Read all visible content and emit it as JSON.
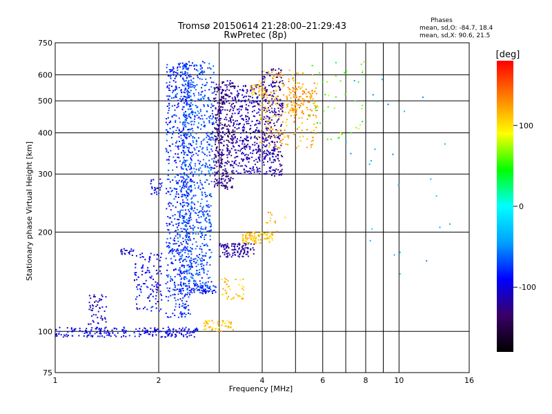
{
  "chart_data": {
    "type": "scatter",
    "title": "Tromsø 20150614 21:28:00–21:29:43",
    "subtitle": "RwPretec (8p)",
    "xlabel": "Frequency [MHz]",
    "ylabel": "Stationary phase Virtual Height [km]",
    "x_scale": "log",
    "y_scale": "log",
    "xlim": [
      1,
      16
    ],
    "ylim": [
      75,
      750
    ],
    "x_ticks": [
      1,
      2,
      4,
      6,
      8,
      10,
      16
    ],
    "y_ticks": [
      75,
      100,
      200,
      300,
      400,
      500,
      600,
      750
    ],
    "x_minor_gridlines": [
      3,
      5,
      7,
      9
    ],
    "grid": true,
    "phases_box": {
      "heading": "Phases",
      "line_o": "mean, sd,O: -84.7, 18.4",
      "line_x": "mean, sd,X:  90.6, 21.5"
    },
    "colorbar": {
      "label": "[deg]",
      "range": [
        -180,
        180
      ],
      "ticks": [
        100,
        0,
        -100
      ],
      "colormap": "rainbow",
      "colors": [
        "#000000",
        "#3a0066",
        "#0000ff",
        "#00a0ff",
        "#00ffff",
        "#00ff00",
        "#ffff00",
        "#ff8000",
        "#ff0000"
      ]
    },
    "clusters": [
      {
        "x": [
          1.0,
          2.6
        ],
        "y": [
          96,
          103
        ],
        "phase": -95,
        "n": 230,
        "mode": "line"
      },
      {
        "x": [
          1.25,
          1.42
        ],
        "y": [
          105,
          132
        ],
        "phase": -105,
        "n": 50
      },
      {
        "x": [
          1.55,
          1.7
        ],
        "y": [
          170,
          178
        ],
        "phase": -100,
        "n": 20
      },
      {
        "x": [
          1.7,
          2.05
        ],
        "y": [
          115,
          175
        ],
        "phase": -95,
        "n": 120
      },
      {
        "x": [
          1.88,
          2.05
        ],
        "y": [
          260,
          290
        ],
        "phase": -95,
        "n": 25
      },
      {
        "x": [
          2.1,
          2.5
        ],
        "y": [
          110,
          660
        ],
        "phase": -80,
        "n": 650
      },
      {
        "x": [
          2.3,
          2.85
        ],
        "y": [
          130,
          300
        ],
        "phase": -70,
        "n": 420
      },
      {
        "x": [
          2.35,
          2.9
        ],
        "y": [
          300,
          660
        ],
        "phase": -70,
        "n": 380
      },
      {
        "x": [
          2.5,
          2.95
        ],
        "y": [
          130,
          138
        ],
        "phase": -88,
        "n": 40
      },
      {
        "x": [
          2.7,
          3.3
        ],
        "y": [
          100,
          108
        ],
        "phase": 110,
        "n": 50
      },
      {
        "x": [
          3.05,
          3.55
        ],
        "y": [
          125,
          145
        ],
        "phase": 112,
        "n": 40
      },
      {
        "x": [
          2.9,
          3.3
        ],
        "y": [
          270,
          580
        ],
        "phase": -125,
        "n": 380
      },
      {
        "x": [
          3.0,
          3.8
        ],
        "y": [
          168,
          185
        ],
        "phase": -120,
        "n": 110
      },
      {
        "x": [
          3.3,
          3.95
        ],
        "y": [
          300,
          560
        ],
        "phase": -112,
        "n": 320
      },
      {
        "x": [
          3.5,
          4.3
        ],
        "y": [
          185,
          200
        ],
        "phase": 112,
        "n": 90
      },
      {
        "x": [
          3.7,
          4.1
        ],
        "y": [
          520,
          560
        ],
        "phase": 118,
        "n": 30
      },
      {
        "x": [
          4.0,
          4.6
        ],
        "y": [
          295,
          630
        ],
        "phase": -120,
        "n": 260
      },
      {
        "x": [
          3.8,
          4.5
        ],
        "y": [
          330,
          360
        ],
        "phase": -115,
        "n": 40
      },
      {
        "x": [
          4.1,
          4.7
        ],
        "y": [
          200,
          230
        ],
        "phase": 115,
        "n": 12
      },
      {
        "x": [
          3.9,
          5.8
        ],
        "y": [
          360,
          620
        ],
        "phase": 120,
        "n": 220
      },
      {
        "x": [
          4.7,
          5.8
        ],
        "y": [
          450,
          550
        ],
        "phase": 130,
        "n": 90
      },
      {
        "x": [
          5.5,
          7.9
        ],
        "y": [
          380,
          660
        ],
        "phase": 60,
        "n": 45
      },
      {
        "x": [
          7.0,
          14.5
        ],
        "y": [
          140,
          600
        ],
        "phase": -40,
        "n": 25
      }
    ]
  }
}
